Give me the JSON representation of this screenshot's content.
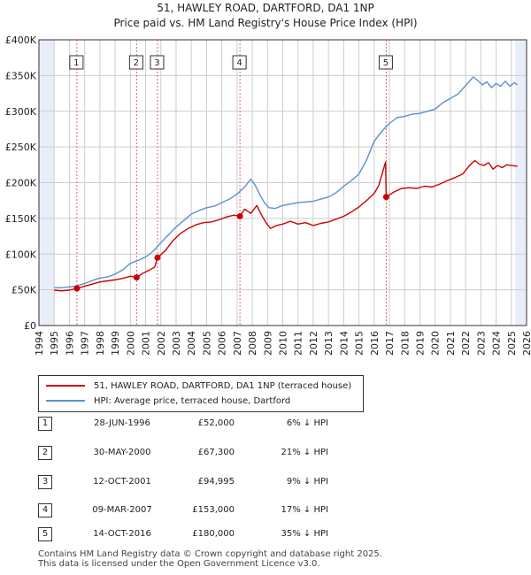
{
  "header": {
    "title_line1": "51, HAWLEY ROAD, DARTFORD, DA1 1NP",
    "title_line2": "Price paid vs. HM Land Registry's House Price Index (HPI)"
  },
  "colors": {
    "property": "#cc0000",
    "hpi": "#5b8fd0",
    "marker_line": "#e06666",
    "band": "#e8eef7",
    "grid": "#cccccc"
  },
  "chart_data": {
    "type": "line",
    "title": "51, HAWLEY ROAD, DARTFORD, DA1 1NP - Price paid vs. HM Land Registry's House Price Index (HPI)",
    "xlabel": "",
    "ylabel": "",
    "xlim": [
      1994,
      2026
    ],
    "ylim": [
      0,
      400000
    ],
    "x_ticks": [
      1994,
      1995,
      1996,
      1997,
      1998,
      1999,
      2000,
      2001,
      2002,
      2003,
      2004,
      2005,
      2006,
      2007,
      2008,
      2009,
      2010,
      2011,
      2012,
      2013,
      2014,
      2015,
      2016,
      2017,
      2018,
      2019,
      2020,
      2021,
      2022,
      2023,
      2024,
      2025,
      2026
    ],
    "y_ticks": [
      {
        "value": 0,
        "label": "£0"
      },
      {
        "value": 50000,
        "label": "£50K"
      },
      {
        "value": 100000,
        "label": "£100K"
      },
      {
        "value": 150000,
        "label": "£150K"
      },
      {
        "value": 200000,
        "label": "£200K"
      },
      {
        "value": 250000,
        "label": "£250K"
      },
      {
        "value": 300000,
        "label": "£300K"
      },
      {
        "value": 350000,
        "label": "£350K"
      },
      {
        "value": 400000,
        "label": "£400K"
      }
    ],
    "shaded_ranges": [
      [
        1994,
        1995
      ],
      [
        2025.25,
        2026
      ]
    ],
    "series": [
      {
        "name": "51, HAWLEY ROAD, DARTFORD, DA1 1NP (terraced house)",
        "color": "#cc0000",
        "x": [
          1995.0,
          1995.5,
          1996.0,
          1996.49,
          1997.0,
          1997.5,
          1998.0,
          1998.5,
          1999.0,
          1999.5,
          2000.0,
          2000.41,
          2000.8,
          2001.2,
          2001.6,
          2001.78,
          2002.3,
          2002.8,
          2003.3,
          2003.8,
          2004.3,
          2004.8,
          2005.3,
          2005.8,
          2006.3,
          2006.8,
          2007.19,
          2007.5,
          2007.9,
          2008.3,
          2008.6,
          2008.9,
          2009.2,
          2009.6,
          2010.0,
          2010.5,
          2011.0,
          2011.5,
          2012.0,
          2012.5,
          2013.0,
          2013.5,
          2014.0,
          2014.5,
          2015.0,
          2015.5,
          2016.0,
          2016.3,
          2016.6,
          2016.75,
          2016.79,
          2017.3,
          2017.8,
          2018.3,
          2018.8,
          2019.3,
          2019.8,
          2020.3,
          2020.8,
          2021.3,
          2021.8,
          2022.3,
          2022.6,
          2022.9,
          2023.2,
          2023.5,
          2023.8,
          2024.1,
          2024.4,
          2024.7,
          2025.0,
          2025.4
        ],
        "values": [
          49500,
          48500,
          49500,
          52000,
          55000,
          58000,
          61000,
          62500,
          64000,
          66000,
          69000,
          67300,
          73000,
          77000,
          82000,
          94995,
          105000,
          119000,
          129000,
          136000,
          141000,
          144000,
          145000,
          148000,
          152000,
          154500,
          153000,
          163000,
          157000,
          168000,
          155000,
          144000,
          136000,
          140000,
          142000,
          146000,
          142000,
          144000,
          140000,
          143000,
          145000,
          149000,
          153000,
          159000,
          166000,
          175000,
          185000,
          196000,
          218000,
          229000,
          180000,
          187000,
          192000,
          193000,
          192000,
          195000,
          194000,
          198000,
          203000,
          207000,
          212000,
          225000,
          231000,
          226000,
          224000,
          228000,
          219000,
          224000,
          221000,
          225000,
          224000,
          223000
        ]
      },
      {
        "name": "HPI: Average price, terraced house, Dartford",
        "color": "#5b8fd0",
        "x": [
          1995.0,
          1995.5,
          1996.0,
          1996.5,
          1997.0,
          1997.5,
          1998.0,
          1998.5,
          1999.0,
          1999.5,
          2000.0,
          2000.5,
          2001.0,
          2001.5,
          2002.0,
          2002.5,
          2003.0,
          2003.5,
          2004.0,
          2004.5,
          2005.0,
          2005.5,
          2006.0,
          2006.5,
          2007.0,
          2007.5,
          2007.9,
          2008.2,
          2008.5,
          2008.8,
          2009.1,
          2009.5,
          2010.0,
          2010.5,
          2011.0,
          2011.5,
          2012.0,
          2012.5,
          2013.0,
          2013.5,
          2014.0,
          2014.5,
          2015.0,
          2015.5,
          2016.0,
          2016.5,
          2017.0,
          2017.5,
          2018.0,
          2018.5,
          2019.0,
          2019.5,
          2020.0,
          2020.5,
          2021.0,
          2021.5,
          2022.0,
          2022.5,
          2022.8,
          2023.1,
          2023.4,
          2023.7,
          2024.0,
          2024.3,
          2024.6,
          2024.9,
          2025.2,
          2025.4
        ],
        "values": [
          53000,
          53000,
          54000,
          55500,
          59000,
          63000,
          66500,
          68000,
          72000,
          78000,
          87000,
          91000,
          96000,
          104000,
          116000,
          127000,
          138000,
          147000,
          156000,
          161000,
          165000,
          167000,
          172000,
          177000,
          184000,
          194000,
          205000,
          196000,
          183000,
          172000,
          165000,
          164000,
          168000,
          170000,
          172000,
          173000,
          174000,
          177000,
          180000,
          186000,
          195000,
          203000,
          212000,
          232000,
          258000,
          272000,
          283000,
          291000,
          293000,
          296000,
          297000,
          300000,
          303000,
          312000,
          318000,
          324000,
          336000,
          348000,
          343000,
          337000,
          341000,
          333000,
          339000,
          335000,
          342000,
          335000,
          340000,
          337000
        ]
      }
    ],
    "transactions": [
      {
        "id": "1",
        "x": 1996.49,
        "value": 52000
      },
      {
        "id": "2",
        "x": 2000.41,
        "value": 67300
      },
      {
        "id": "3",
        "x": 2001.78,
        "value": 94995
      },
      {
        "id": "4",
        "x": 2007.19,
        "value": 153000
      },
      {
        "id": "5",
        "x": 2016.79,
        "value": 180000
      }
    ]
  },
  "legend": {
    "property_label": "51, HAWLEY ROAD, DARTFORD, DA1 1NP (terraced house)",
    "hpi_label": "HPI: Average price, terraced house, Dartford"
  },
  "table": [
    {
      "num": "1",
      "date": "28-JUN-1996",
      "price": "£52,000",
      "hpi": "6% ↓ HPI"
    },
    {
      "num": "2",
      "date": "30-MAY-2000",
      "price": "£67,300",
      "hpi": "21% ↓ HPI"
    },
    {
      "num": "3",
      "date": "12-OCT-2001",
      "price": "£94,995",
      "hpi": "9% ↓ HPI"
    },
    {
      "num": "4",
      "date": "09-MAR-2007",
      "price": "£153,000",
      "hpi": "17% ↓ HPI"
    },
    {
      "num": "5",
      "date": "14-OCT-2016",
      "price": "£180,000",
      "hpi": "35% ↓ HPI"
    }
  ],
  "footer": {
    "line1": "Contains HM Land Registry data © Crown copyright and database right 2025.",
    "line2": "This data is licensed under the Open Government Licence v3.0."
  }
}
